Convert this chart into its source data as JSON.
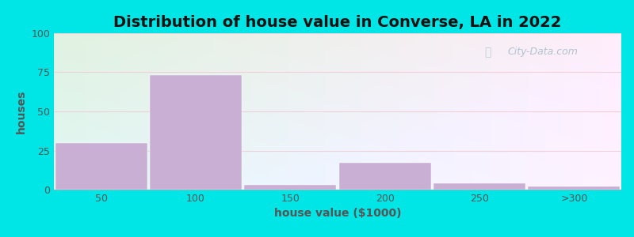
{
  "title": "Distribution of house value in Converse, LA in 2022",
  "xlabel": "house value ($1000)",
  "ylabel": "houses",
  "bar_color": "#c9afd4",
  "bar_edgecolor": "#c9afd4",
  "background_outer": "#00e5e5",
  "ylim": [
    0,
    100
  ],
  "yticks": [
    0,
    25,
    50,
    75,
    100
  ],
  "categories": [
    "50",
    "100",
    "150",
    "200",
    "250",
    ">300"
  ],
  "values": [
    30,
    73,
    3,
    17,
    4,
    2
  ],
  "title_fontsize": 14,
  "axis_label_fontsize": 10,
  "tick_fontsize": 9,
  "watermark_text": "City-Data.com",
  "watermark_color": "#a8bfc8",
  "grid_color": "#e0e8e0",
  "grid_linewidth": 0.8,
  "bg_top_left": "#d8edd8",
  "bg_top_right": "#e8f5f5",
  "bg_bottom_left": "#e8f5e8",
  "bg_bottom_right": "#f0fafa"
}
